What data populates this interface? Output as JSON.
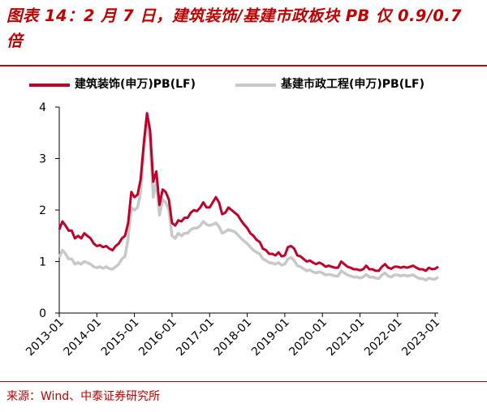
{
  "title": "图表 14：2 月 7 日，建筑装饰/基建市政板块 PB 仅 0.9/0.7 倍",
  "source": "来源：Wind、中泰证券研究所",
  "colors": {
    "accent": "#c00000",
    "series_1": "#c0002a",
    "series_2": "#c8c8c8"
  },
  "chart_data": {
    "type": "line",
    "x_tick_labels": [
      "2013-01",
      "2014-01",
      "2015-01",
      "2016-01",
      "2017-01",
      "2018-01",
      "2019-01",
      "2020-01",
      "2021-01",
      "2022-01",
      "2023-01"
    ],
    "y_tick_labels": [
      "0",
      "1",
      "2",
      "3",
      "4"
    ],
    "ylim": [
      0,
      4
    ],
    "xlim": [
      "2013-01",
      "2023-02"
    ],
    "grid": false,
    "legend_position": "top",
    "series": [
      {
        "name": "建筑装饰(申万)PB(LF)",
        "color": "#c0002a",
        "points": [
          [
            "2013-01",
            1.62
          ],
          [
            "2013-02",
            1.78
          ],
          [
            "2013-03",
            1.7
          ],
          [
            "2013-04",
            1.6
          ],
          [
            "2013-05",
            1.6
          ],
          [
            "2013-06",
            1.45
          ],
          [
            "2013-07",
            1.5
          ],
          [
            "2013-08",
            1.45
          ],
          [
            "2013-09",
            1.55
          ],
          [
            "2013-10",
            1.5
          ],
          [
            "2013-11",
            1.45
          ],
          [
            "2013-12",
            1.35
          ],
          [
            "2014-01",
            1.3
          ],
          [
            "2014-02",
            1.32
          ],
          [
            "2014-03",
            1.28
          ],
          [
            "2014-04",
            1.3
          ],
          [
            "2014-05",
            1.25
          ],
          [
            "2014-06",
            1.22
          ],
          [
            "2014-07",
            1.3
          ],
          [
            "2014-08",
            1.35
          ],
          [
            "2014-09",
            1.45
          ],
          [
            "2014-10",
            1.5
          ],
          [
            "2014-11",
            1.75
          ],
          [
            "2014-12",
            2.35
          ],
          [
            "2015-01",
            2.25
          ],
          [
            "2015-02",
            2.3
          ],
          [
            "2015-03",
            2.6
          ],
          [
            "2015-04",
            3.3
          ],
          [
            "2015-05",
            3.88
          ],
          [
            "2015-06",
            3.55
          ],
          [
            "2015-07",
            2.55
          ],
          [
            "2015-08",
            2.75
          ],
          [
            "2015-09",
            2.1
          ],
          [
            "2015-10",
            2.4
          ],
          [
            "2015-11",
            2.35
          ],
          [
            "2015-12",
            2.2
          ],
          [
            "2016-01",
            1.75
          ],
          [
            "2016-02",
            1.7
          ],
          [
            "2016-03",
            1.8
          ],
          [
            "2016-04",
            1.78
          ],
          [
            "2016-05",
            1.85
          ],
          [
            "2016-06",
            1.85
          ],
          [
            "2016-07",
            1.95
          ],
          [
            "2016-08",
            2.0
          ],
          [
            "2016-09",
            1.98
          ],
          [
            "2016-10",
            2.05
          ],
          [
            "2016-11",
            2.15
          ],
          [
            "2016-12",
            2.05
          ],
          [
            "2017-01",
            2.05
          ],
          [
            "2017-02",
            2.15
          ],
          [
            "2017-03",
            2.25
          ],
          [
            "2017-04",
            2.15
          ],
          [
            "2017-05",
            1.92
          ],
          [
            "2017-06",
            1.95
          ],
          [
            "2017-07",
            2.05
          ],
          [
            "2017-08",
            2.0
          ],
          [
            "2017-09",
            1.95
          ],
          [
            "2017-10",
            1.9
          ],
          [
            "2017-11",
            1.8
          ],
          [
            "2017-12",
            1.72
          ],
          [
            "2018-01",
            1.65
          ],
          [
            "2018-02",
            1.55
          ],
          [
            "2018-03",
            1.5
          ],
          [
            "2018-04",
            1.42
          ],
          [
            "2018-05",
            1.38
          ],
          [
            "2018-06",
            1.25
          ],
          [
            "2018-07",
            1.22
          ],
          [
            "2018-08",
            1.15
          ],
          [
            "2018-09",
            1.15
          ],
          [
            "2018-10",
            1.12
          ],
          [
            "2018-11",
            1.18
          ],
          [
            "2018-12",
            1.1
          ],
          [
            "2019-01",
            1.12
          ],
          [
            "2019-02",
            1.28
          ],
          [
            "2019-03",
            1.3
          ],
          [
            "2019-04",
            1.25
          ],
          [
            "2019-05",
            1.12
          ],
          [
            "2019-06",
            1.1
          ],
          [
            "2019-07",
            1.05
          ],
          [
            "2019-08",
            1.0
          ],
          [
            "2019-09",
            1.02
          ],
          [
            "2019-10",
            0.98
          ],
          [
            "2019-11",
            0.95
          ],
          [
            "2019-12",
            0.98
          ],
          [
            "2020-01",
            0.95
          ],
          [
            "2020-02",
            0.9
          ],
          [
            "2020-03",
            0.92
          ],
          [
            "2020-04",
            0.9
          ],
          [
            "2020-05",
            0.88
          ],
          [
            "2020-06",
            0.88
          ],
          [
            "2020-07",
            1.0
          ],
          [
            "2020-08",
            0.95
          ],
          [
            "2020-09",
            0.9
          ],
          [
            "2020-10",
            0.88
          ],
          [
            "2020-11",
            0.85
          ],
          [
            "2020-12",
            0.85
          ],
          [
            "2021-01",
            0.83
          ],
          [
            "2021-02",
            0.85
          ],
          [
            "2021-03",
            0.92
          ],
          [
            "2021-04",
            0.85
          ],
          [
            "2021-05",
            0.85
          ],
          [
            "2021-06",
            0.82
          ],
          [
            "2021-07",
            0.82
          ],
          [
            "2021-08",
            0.9
          ],
          [
            "2021-09",
            0.95
          ],
          [
            "2021-10",
            0.88
          ],
          [
            "2021-11",
            0.86
          ],
          [
            "2021-12",
            0.9
          ],
          [
            "2022-01",
            0.9
          ],
          [
            "2022-02",
            0.88
          ],
          [
            "2022-03",
            0.9
          ],
          [
            "2022-04",
            0.88
          ],
          [
            "2022-05",
            0.9
          ],
          [
            "2022-06",
            0.92
          ],
          [
            "2022-07",
            0.88
          ],
          [
            "2022-08",
            0.85
          ],
          [
            "2022-09",
            0.85
          ],
          [
            "2022-10",
            0.82
          ],
          [
            "2022-11",
            0.88
          ],
          [
            "2022-12",
            0.85
          ],
          [
            "2023-01",
            0.86
          ],
          [
            "2023-02",
            0.9
          ]
        ]
      },
      {
        "name": "基建市政工程(申万)PB(LF)",
        "color": "#c8c8c8",
        "points": [
          [
            "2013-01",
            1.08
          ],
          [
            "2013-02",
            1.22
          ],
          [
            "2013-03",
            1.15
          ],
          [
            "2013-04",
            1.05
          ],
          [
            "2013-05",
            1.05
          ],
          [
            "2013-06",
            0.95
          ],
          [
            "2013-07",
            0.98
          ],
          [
            "2013-08",
            0.95
          ],
          [
            "2013-09",
            1.0
          ],
          [
            "2013-10",
            0.98
          ],
          [
            "2013-11",
            0.95
          ],
          [
            "2013-12",
            0.9
          ],
          [
            "2014-01",
            0.88
          ],
          [
            "2014-02",
            0.9
          ],
          [
            "2014-03",
            0.87
          ],
          [
            "2014-04",
            0.9
          ],
          [
            "2014-05",
            0.86
          ],
          [
            "2014-06",
            0.85
          ],
          [
            "2014-07",
            0.9
          ],
          [
            "2014-08",
            0.95
          ],
          [
            "2014-09",
            1.05
          ],
          [
            "2014-10",
            1.1
          ],
          [
            "2014-11",
            1.45
          ],
          [
            "2014-12",
            2.05
          ],
          [
            "2015-01",
            2.0
          ],
          [
            "2015-02",
            2.05
          ],
          [
            "2015-03",
            2.35
          ],
          [
            "2015-04",
            3.2
          ],
          [
            "2015-05",
            3.75
          ],
          [
            "2015-06",
            3.35
          ],
          [
            "2015-07",
            2.25
          ],
          [
            "2015-08",
            2.55
          ],
          [
            "2015-09",
            1.9
          ],
          [
            "2015-10",
            2.2
          ],
          [
            "2015-11",
            2.15
          ],
          [
            "2015-12",
            2.0
          ],
          [
            "2016-01",
            1.5
          ],
          [
            "2016-02",
            1.45
          ],
          [
            "2016-03",
            1.55
          ],
          [
            "2016-04",
            1.5
          ],
          [
            "2016-05",
            1.55
          ],
          [
            "2016-06",
            1.55
          ],
          [
            "2016-07",
            1.62
          ],
          [
            "2016-08",
            1.65
          ],
          [
            "2016-09",
            1.65
          ],
          [
            "2016-10",
            1.7
          ],
          [
            "2016-11",
            1.78
          ],
          [
            "2016-12",
            1.72
          ],
          [
            "2017-01",
            1.7
          ],
          [
            "2017-02",
            1.72
          ],
          [
            "2017-03",
            1.75
          ],
          [
            "2017-04",
            1.68
          ],
          [
            "2017-05",
            1.55
          ],
          [
            "2017-06",
            1.58
          ],
          [
            "2017-07",
            1.62
          ],
          [
            "2017-08",
            1.6
          ],
          [
            "2017-09",
            1.58
          ],
          [
            "2017-10",
            1.52
          ],
          [
            "2017-11",
            1.45
          ],
          [
            "2017-12",
            1.4
          ],
          [
            "2018-01",
            1.35
          ],
          [
            "2018-02",
            1.28
          ],
          [
            "2018-03",
            1.22
          ],
          [
            "2018-04",
            1.18
          ],
          [
            "2018-05",
            1.15
          ],
          [
            "2018-06",
            1.05
          ],
          [
            "2018-07",
            1.02
          ],
          [
            "2018-08",
            0.98
          ],
          [
            "2018-09",
            0.97
          ],
          [
            "2018-10",
            0.95
          ],
          [
            "2018-11",
            0.98
          ],
          [
            "2018-12",
            0.93
          ],
          [
            "2019-01",
            0.95
          ],
          [
            "2019-02",
            1.05
          ],
          [
            "2019-03",
            1.08
          ],
          [
            "2019-04",
            1.02
          ],
          [
            "2019-05",
            0.92
          ],
          [
            "2019-06",
            0.9
          ],
          [
            "2019-07",
            0.86
          ],
          [
            "2019-08",
            0.82
          ],
          [
            "2019-09",
            0.84
          ],
          [
            "2019-10",
            0.8
          ],
          [
            "2019-11",
            0.78
          ],
          [
            "2019-12",
            0.8
          ],
          [
            "2020-01",
            0.78
          ],
          [
            "2020-02",
            0.74
          ],
          [
            "2020-03",
            0.75
          ],
          [
            "2020-04",
            0.74
          ],
          [
            "2020-05",
            0.72
          ],
          [
            "2020-06",
            0.72
          ],
          [
            "2020-07",
            0.82
          ],
          [
            "2020-08",
            0.78
          ],
          [
            "2020-09",
            0.74
          ],
          [
            "2020-10",
            0.72
          ],
          [
            "2020-11",
            0.7
          ],
          [
            "2020-12",
            0.7
          ],
          [
            "2021-01",
            0.68
          ],
          [
            "2021-02",
            0.7
          ],
          [
            "2021-03",
            0.75
          ],
          [
            "2021-04",
            0.7
          ],
          [
            "2021-05",
            0.7
          ],
          [
            "2021-06",
            0.68
          ],
          [
            "2021-07",
            0.67
          ],
          [
            "2021-08",
            0.74
          ],
          [
            "2021-09",
            0.78
          ],
          [
            "2021-10",
            0.72
          ],
          [
            "2021-11",
            0.7
          ],
          [
            "2021-12",
            0.74
          ],
          [
            "2022-01",
            0.74
          ],
          [
            "2022-02",
            0.72
          ],
          [
            "2022-03",
            0.74
          ],
          [
            "2022-04",
            0.72
          ],
          [
            "2022-05",
            0.73
          ],
          [
            "2022-06",
            0.74
          ],
          [
            "2022-07",
            0.7
          ],
          [
            "2022-08",
            0.67
          ],
          [
            "2022-09",
            0.67
          ],
          [
            "2022-10",
            0.64
          ],
          [
            "2022-11",
            0.68
          ],
          [
            "2022-12",
            0.66
          ],
          [
            "2023-01",
            0.66
          ],
          [
            "2023-02",
            0.7
          ]
        ]
      }
    ]
  }
}
